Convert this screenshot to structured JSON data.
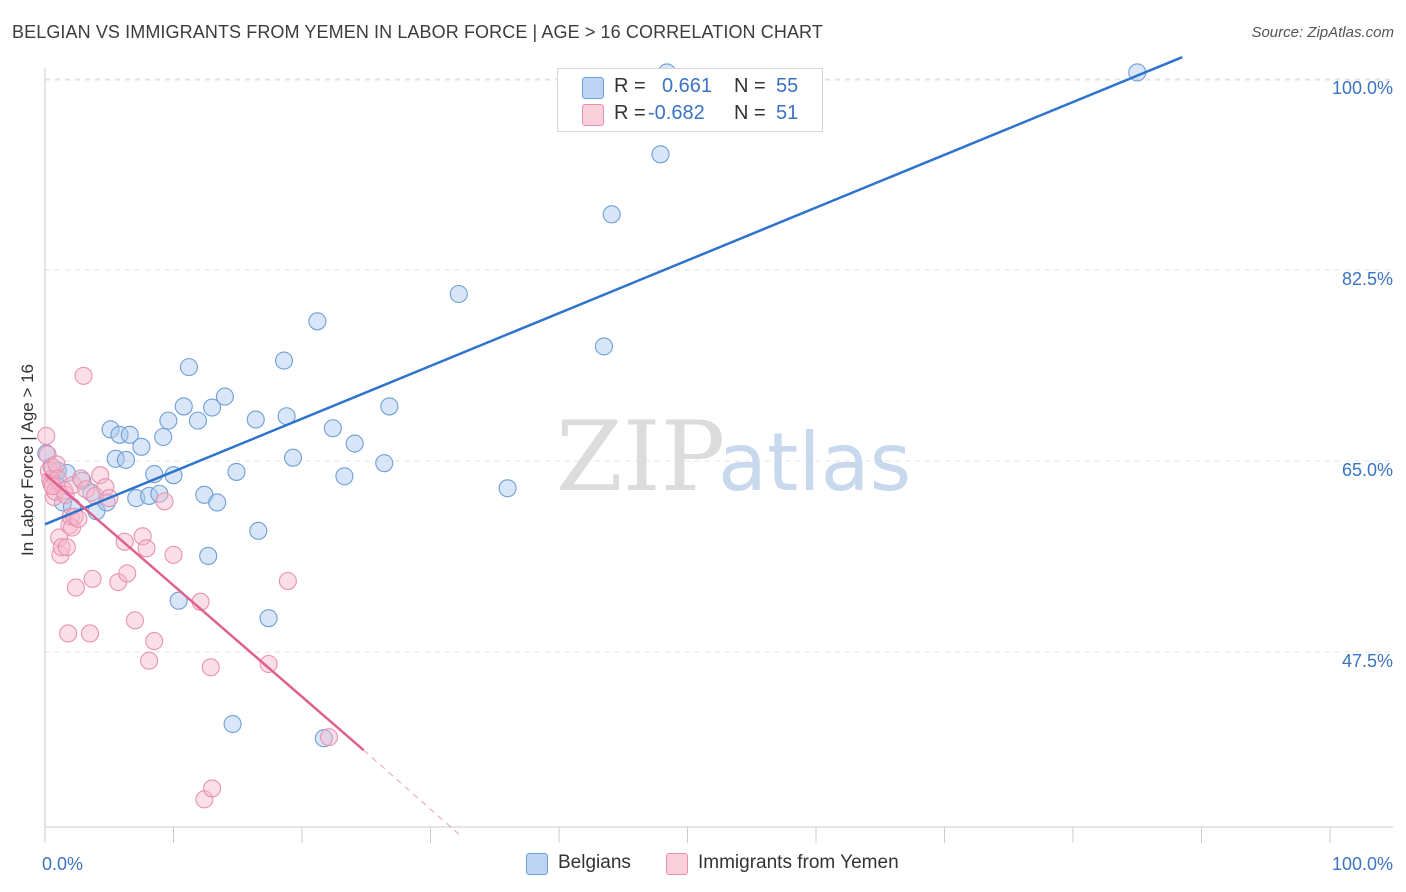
{
  "header": {
    "title": "BELGIAN VS IMMIGRANTS FROM YEMEN IN LABOR FORCE | AGE > 16 CORRELATION CHART",
    "source": "Source: ZipAtlas.com"
  },
  "watermark": {
    "zip": "ZIP",
    "atlas": "atlas"
  },
  "legend": {
    "r_label": "R =",
    "n_label": "N =",
    "series": [
      {
        "name": "Belgians",
        "r": "0.661",
        "n": "55"
      },
      {
        "name": "Immigrants from Yemen",
        "r": "-0.682",
        "n": "51"
      }
    ]
  },
  "colors": {
    "blue_fill": "#a9c8ee",
    "blue_stroke": "#6f9fd8",
    "blue_line": "#2f73cc",
    "pink_fill": "#f6b9cb",
    "pink_stroke": "#e992ae",
    "pink_line": "#e0608f",
    "tick_text": "#3a73c4",
    "grid": "#e3e3e3"
  },
  "chart_data": {
    "type": "scatter",
    "title": "BELGIAN VS IMMIGRANTS FROM YEMEN IN LABOR FORCE | AGE > 16 CORRELATION CHART",
    "xlabel": "",
    "ylabel": "In Labor Force | Age > 16",
    "xlim": [
      0,
      100
    ],
    "ylim": [
      32.5,
      102
    ],
    "x_tick_labels": [
      "0.0%",
      "100.0%"
    ],
    "y_ticks": [
      {
        "value": 100.0,
        "label": "100.0%"
      },
      {
        "value": 82.5,
        "label": "82.5%"
      },
      {
        "value": 65.0,
        "label": "65.0%"
      },
      {
        "value": 47.5,
        "label": "47.5%"
      }
    ],
    "grid": true,
    "legend_position": "top-center",
    "series": [
      {
        "name": "Belgians",
        "color": "#6f9fd8",
        "trend": {
          "x": [
            0,
            88.5
          ],
          "y": [
            59.2,
            102.0
          ]
        },
        "points": [
          [
            0.1,
            65.7
          ],
          [
            0.5,
            64.5
          ],
          [
            0.8,
            63.4
          ],
          [
            1.0,
            64.1
          ],
          [
            1.4,
            61.2
          ],
          [
            1.7,
            63.9
          ],
          [
            2.1,
            60.8
          ],
          [
            2.9,
            63.2
          ],
          [
            3.6,
            62.1
          ],
          [
            4.0,
            60.4
          ],
          [
            4.8,
            61.2
          ],
          [
            5.1,
            67.9
          ],
          [
            5.5,
            65.2
          ],
          [
            5.8,
            67.4
          ],
          [
            6.3,
            65.1
          ],
          [
            6.6,
            67.4
          ],
          [
            7.1,
            61.6
          ],
          [
            7.5,
            66.3
          ],
          [
            8.1,
            61.8
          ],
          [
            8.5,
            63.8
          ],
          [
            8.9,
            62.0
          ],
          [
            9.2,
            67.2
          ],
          [
            9.6,
            68.7
          ],
          [
            10.0,
            63.7
          ],
          [
            10.4,
            52.2
          ],
          [
            10.8,
            70.0
          ],
          [
            11.2,
            73.6
          ],
          [
            11.9,
            68.7
          ],
          [
            12.4,
            61.9
          ],
          [
            12.7,
            56.3
          ],
          [
            13.0,
            69.9
          ],
          [
            13.4,
            61.2
          ],
          [
            14.0,
            70.9
          ],
          [
            14.6,
            40.9
          ],
          [
            14.9,
            64.0
          ],
          [
            16.4,
            68.8
          ],
          [
            16.6,
            58.6
          ],
          [
            17.4,
            50.6
          ],
          [
            18.6,
            74.2
          ],
          [
            18.8,
            69.1
          ],
          [
            19.3,
            65.3
          ],
          [
            21.2,
            77.8
          ],
          [
            22.4,
            68.0
          ],
          [
            23.3,
            63.6
          ],
          [
            24.1,
            66.6
          ],
          [
            26.4,
            64.8
          ],
          [
            26.8,
            70.0
          ],
          [
            21.7,
            39.6
          ],
          [
            32.2,
            80.3
          ],
          [
            36.0,
            62.5
          ],
          [
            43.5,
            75.5
          ],
          [
            44.1,
            87.6
          ],
          [
            47.9,
            93.1
          ],
          [
            85.0,
            100.6
          ],
          [
            48.4,
            100.6
          ]
        ]
      },
      {
        "name": "Immigrants from Yemen",
        "color": "#e992ae",
        "trend": {
          "x": [
            0,
            24.8
          ],
          "y": [
            63.8,
            38.5
          ]
        },
        "trend_dashed": {
          "x": [
            24.8,
            32.5
          ],
          "y": [
            38.5,
            30.5
          ]
        },
        "points": [
          [
            0.1,
            67.3
          ],
          [
            0.2,
            65.6
          ],
          [
            0.3,
            64.1
          ],
          [
            0.4,
            63.3
          ],
          [
            0.5,
            62.9
          ],
          [
            0.6,
            64.4
          ],
          [
            0.7,
            61.7
          ],
          [
            0.8,
            62.2
          ],
          [
            0.9,
            64.7
          ],
          [
            1.0,
            63.4
          ],
          [
            1.1,
            58.0
          ],
          [
            1.2,
            56.4
          ],
          [
            1.3,
            57.1
          ],
          [
            1.5,
            62.3
          ],
          [
            1.6,
            61.9
          ],
          [
            1.7,
            57.1
          ],
          [
            1.8,
            49.2
          ],
          [
            1.9,
            59.1
          ],
          [
            2.0,
            59.9
          ],
          [
            2.1,
            58.9
          ],
          [
            2.2,
            62.8
          ],
          [
            2.3,
            59.9
          ],
          [
            2.4,
            53.4
          ],
          [
            2.6,
            59.7
          ],
          [
            2.8,
            63.4
          ],
          [
            3.0,
            72.8
          ],
          [
            3.2,
            62.4
          ],
          [
            3.5,
            49.2
          ],
          [
            3.7,
            54.2
          ],
          [
            3.9,
            61.8
          ],
          [
            4.3,
            63.7
          ],
          [
            4.7,
            62.6
          ],
          [
            5.0,
            61.6
          ],
          [
            5.7,
            53.9
          ],
          [
            6.2,
            57.6
          ],
          [
            6.4,
            54.7
          ],
          [
            7.0,
            50.4
          ],
          [
            7.6,
            58.1
          ],
          [
            7.9,
            57.0
          ],
          [
            8.1,
            46.7
          ],
          [
            9.3,
            61.3
          ],
          [
            10.0,
            56.4
          ],
          [
            12.1,
            52.1
          ],
          [
            12.9,
            46.1
          ],
          [
            17.4,
            46.4
          ],
          [
            18.9,
            54.0
          ],
          [
            22.1,
            39.7
          ],
          [
            12.4,
            34.0
          ],
          [
            13.0,
            35.0
          ],
          [
            8.5,
            48.5
          ],
          [
            0.6,
            62.7
          ]
        ]
      }
    ]
  }
}
